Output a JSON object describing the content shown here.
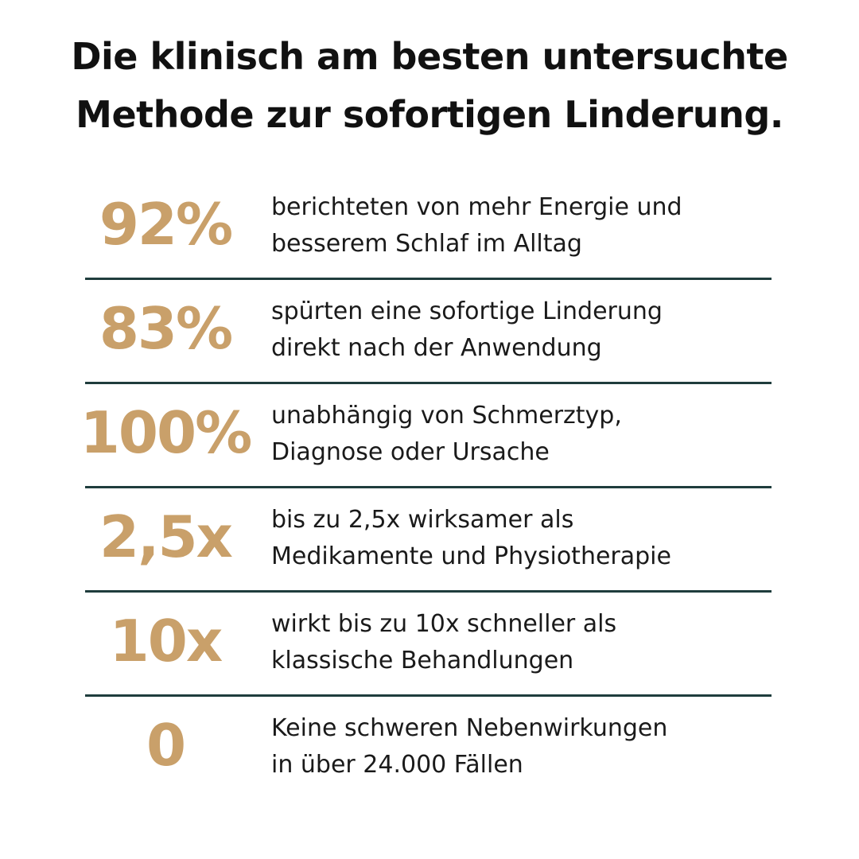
{
  "header": {
    "title_lines": [
      "Die klinisch am besten untersuchte",
      "Methode zur sofortigen Linderung."
    ]
  },
  "stats": [
    {
      "stat": "92%",
      "description_lines": [
        "berichteten von mehr Energie und",
        "besserem Schlaf im Alltag"
      ]
    },
    {
      "stat": "83%",
      "description_lines": [
        "spürten eine sofortige Linderung",
        "direkt nach der Anwendung"
      ]
    },
    {
      "stat": "100%",
      "description_lines": [
        "unabhängig von Schmerztyp,",
        "Diagnose oder Ursache"
      ]
    },
    {
      "stat": "2,5x",
      "description_lines": [
        "bis zu 2,5x wirksamer als",
        "Medikamente und Physiotherapie"
      ]
    },
    {
      "stat": "10x",
      "description_lines": [
        "wirkt bis zu 10x schneller als",
        "klassische Behandlungen"
      ]
    },
    {
      "stat": "0",
      "description_lines": [
        "Keine schweren Nebenwirkungen",
        "in über 24.000 Fällen"
      ]
    }
  ]
}
